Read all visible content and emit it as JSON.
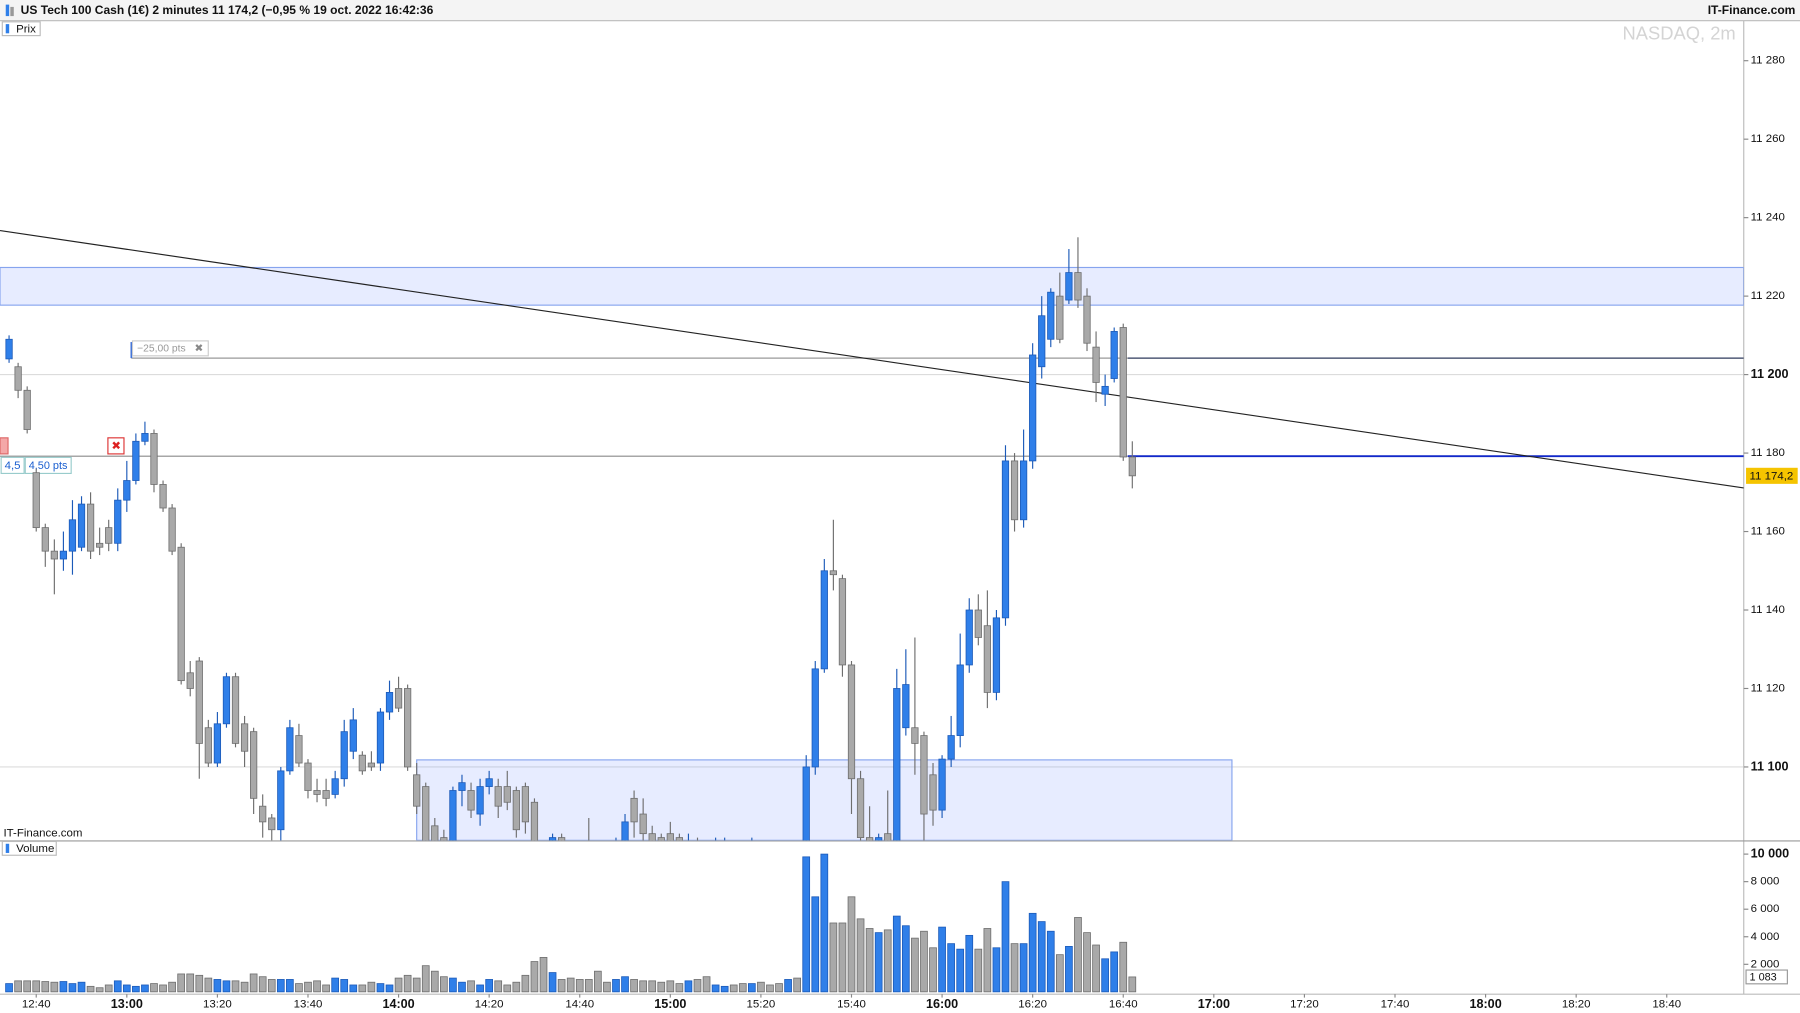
{
  "header": {
    "title": "US Tech 100 Cash (1€) 2 minutes 11 174,2 (−0,95 % 19 oct. 2022 16:42:36",
    "brand": "IT-Finance.com"
  },
  "chart_data": [
    {
      "type": "candlestick",
      "title": "Prix",
      "watermark": "NASDAQ, 2m",
      "source": "IT-Finance.com",
      "up_color": "#2f7fe9",
      "down_color": "#a9a9a9",
      "x": [
        "12:34",
        "12:36",
        "12:38",
        "12:40",
        "12:42",
        "12:44",
        "12:46",
        "12:48",
        "12:50",
        "12:52",
        "12:54",
        "12:56",
        "12:58",
        "13:00",
        "13:02",
        "13:04",
        "13:06",
        "13:08",
        "13:10",
        "13:12",
        "13:14",
        "13:16",
        "13:18",
        "13:20",
        "13:22",
        "13:24",
        "13:26",
        "13:28",
        "13:30",
        "13:32",
        "13:34",
        "13:36",
        "13:38",
        "13:40",
        "13:42",
        "13:44",
        "13:46",
        "13:48",
        "13:50",
        "13:52",
        "13:54",
        "13:56",
        "13:58",
        "14:00",
        "14:02",
        "14:04",
        "14:06",
        "14:08",
        "14:10",
        "14:12",
        "14:14",
        "14:16",
        "14:18",
        "14:20",
        "14:22",
        "14:24",
        "14:26",
        "14:28",
        "14:30",
        "14:32",
        "14:34",
        "14:36",
        "14:38",
        "14:40",
        "14:42",
        "14:44",
        "14:46",
        "14:48",
        "14:50",
        "14:52",
        "14:54",
        "14:56",
        "14:58",
        "15:00",
        "15:02",
        "15:04",
        "15:06",
        "15:08",
        "15:10",
        "15:12",
        "15:14",
        "15:16",
        "15:18",
        "15:20",
        "15:22",
        "15:24",
        "15:26",
        "15:28",
        "15:30",
        "15:32",
        "15:34",
        "15:36",
        "15:38",
        "15:40",
        "15:42",
        "15:44",
        "15:46",
        "15:48",
        "15:50",
        "15:52",
        "15:54",
        "15:56",
        "15:58",
        "16:00",
        "16:02",
        "16:04",
        "16:06",
        "16:08",
        "16:10",
        "16:12",
        "16:14",
        "16:16",
        "16:18",
        "16:20",
        "16:22",
        "16:24",
        "16:26",
        "16:28",
        "16:30",
        "16:32",
        "16:34",
        "16:36",
        "16:38",
        "16:40",
        "16:42"
      ],
      "open": [
        11204,
        11202,
        11196,
        11175,
        11161,
        11155,
        11153,
        11155,
        11156,
        11167,
        11157,
        11161,
        11157,
        11168,
        11173,
        11183,
        11185,
        11172,
        11166,
        11156,
        11124,
        11127,
        11110,
        11101,
        11111,
        11123,
        11111,
        11109,
        11090,
        11087,
        11084,
        11099,
        11108,
        11101,
        11094,
        11094,
        11093,
        11097,
        11104,
        11103,
        11101,
        11101,
        11114,
        11120,
        11120,
        11098,
        11095,
        11085,
        11082,
        11078,
        11094,
        11094,
        11088,
        11095,
        11095,
        11095,
        11094,
        11095,
        11091,
        11078,
        11080,
        11082,
        11079,
        11078,
        11080,
        11077,
        11078,
        11080,
        11081,
        11092,
        11088,
        11083,
        11082,
        11083,
        11082,
        11079,
        11081,
        11080,
        11080,
        11080,
        11080,
        11079,
        11079,
        11080,
        11079,
        11078,
        11076,
        11078,
        11080,
        11100,
        11125,
        11150,
        11148,
        11126,
        11097,
        11082,
        11079,
        11083,
        11080,
        11110,
        11110,
        11108,
        11098,
        11089,
        11102,
        11108,
        11126,
        11140,
        11136,
        11119,
        11138,
        11178,
        11163,
        11178,
        11202,
        11209,
        11220,
        11219,
        11226,
        11220,
        11207,
        11195,
        11199,
        11212,
        11179
      ],
      "high": [
        11210,
        11203,
        11197,
        11176,
        11162,
        11158,
        11160,
        11168,
        11169,
        11170,
        11161,
        11163,
        11171,
        11178,
        11185,
        11188,
        11186,
        11173,
        11167,
        11157,
        11127,
        11128,
        11112,
        11114,
        11124,
        11124,
        11113,
        11110,
        11093,
        11088,
        11100,
        11112,
        11111,
        11102,
        11097,
        11097,
        11099,
        11112,
        11115,
        11104,
        11104,
        11115,
        11122,
        11123,
        11121,
        11101,
        11096,
        11087,
        11084,
        11095,
        11098,
        11096,
        11097,
        11099,
        11097,
        11099,
        11095,
        11096,
        11092,
        11080,
        11083,
        11083,
        11080,
        11079,
        11087,
        11079,
        11080,
        11082,
        11088,
        11094,
        11092,
        11085,
        11083,
        11086,
        11083,
        11083,
        11082,
        11081,
        11082,
        11082,
        11081,
        11080,
        11082,
        11081,
        11080,
        11079,
        11080,
        11079,
        11103,
        11127,
        11153,
        11163,
        11149,
        11127,
        11099,
        11090,
        11083,
        11094,
        11125,
        11130,
        11133,
        11109,
        11101,
        11103,
        11113,
        11134,
        11143,
        11144,
        11145,
        11140,
        11182,
        11180,
        11186,
        11208,
        11220,
        11222,
        11226,
        11232,
        11235,
        11222,
        11211,
        11200,
        11212,
        11213,
        11183
      ],
      "low": [
        11203,
        11194,
        11185,
        11160,
        11151,
        11144,
        11150,
        11149,
        11155,
        11153,
        11154,
        11155,
        11155,
        11165,
        11172,
        11182,
        11170,
        11165,
        11154,
        11121,
        11118,
        11097,
        11100,
        11100,
        11110,
        11105,
        11100,
        11088,
        11082,
        11081,
        11081,
        11098,
        11100,
        11092,
        11091,
        11090,
        11092,
        11095,
        11102,
        11098,
        11099,
        11099,
        11112,
        11114,
        11099,
        11088,
        11075,
        11078,
        11076,
        11076,
        11090,
        11087,
        11085,
        11093,
        11087,
        11089,
        11082,
        11083,
        11072,
        11073,
        11078,
        11078,
        11074,
        11073,
        11074,
        11073,
        11074,
        11079,
        11079,
        11082,
        11080,
        11079,
        11079,
        11079,
        11078,
        11077,
        11077,
        11076,
        11079,
        11079,
        11077,
        11076,
        11078,
        11077,
        11076,
        11075,
        11074,
        11074,
        11078,
        11098,
        11124,
        11145,
        11123,
        11088,
        11078,
        11077,
        11078,
        11078,
        11079,
        11108,
        11098,
        11081,
        11085,
        11087,
        11100,
        11105,
        11124,
        11131,
        11115,
        11117,
        11136,
        11160,
        11161,
        11176,
        11199,
        11207,
        11208,
        11218,
        11217,
        11206,
        11193,
        11192,
        11198,
        11178,
        11171
      ],
      "close": [
        11209,
        11196,
        11186,
        11161,
        11155,
        11153,
        11155,
        11163,
        11167,
        11155,
        11156,
        11157,
        11168,
        11173,
        11183,
        11185,
        11172,
        11166,
        11155,
        11122,
        11120,
        11106,
        11101,
        11111,
        11123,
        11106,
        11104,
        11092,
        11086,
        11084,
        11099,
        11110,
        11101,
        11094,
        11093,
        11092,
        11097,
        11109,
        11112,
        11099,
        11100,
        11114,
        11119,
        11115,
        11100,
        11090,
        11078,
        11080,
        11078,
        11094,
        11096,
        11089,
        11095,
        11097,
        11090,
        11091,
        11084,
        11086,
        11076,
        11075,
        11082,
        11080,
        11076,
        11075,
        11077,
        11075,
        11076,
        11081,
        11086,
        11086,
        11083,
        11081,
        11080,
        11081,
        11080,
        11081,
        11079,
        11078,
        11081,
        11081,
        11079,
        11077,
        11081,
        11078,
        11077,
        11076,
        11078,
        11076,
        11100,
        11125,
        11150,
        11149,
        11126,
        11097,
        11082,
        11079,
        11082,
        11081,
        11120,
        11121,
        11106,
        11088,
        11089,
        11102,
        11108,
        11126,
        11140,
        11133,
        11119,
        11138,
        11178,
        11163,
        11178,
        11205,
        11215,
        11221,
        11209,
        11226,
        11219,
        11208,
        11198,
        11197,
        11211,
        11179,
        11174.2
      ],
      "last_label": "11 174,2",
      "xlim": [
        "12:32",
        "18:57"
      ],
      "xticks": [
        "12:40",
        "13:00",
        "13:20",
        "13:40",
        "14:00",
        "14:20",
        "14:40",
        "15:00",
        "15:20",
        "15:40",
        "16:00",
        "16:20",
        "16:40",
        "17:00",
        "17:20",
        "17:40",
        "18:00",
        "18:20",
        "18:40"
      ],
      "ylim": [
        11081.3,
        11290.2
      ],
      "yticks": [
        {
          "value": 11280,
          "label": "11 280"
        },
        {
          "value": 11260,
          "label": "11 260"
        },
        {
          "value": 11240,
          "label": "11 240"
        },
        {
          "value": 11220,
          "label": "11 220"
        },
        {
          "value": 11200,
          "label": "11 200",
          "major": true
        },
        {
          "value": 11180,
          "label": "11 180"
        },
        {
          "value": 11160,
          "label": "11 160"
        },
        {
          "value": 11140,
          "label": "11 140"
        },
        {
          "value": 11120,
          "label": "11 120"
        },
        {
          "value": 11100,
          "label": "11 100",
          "major": true
        }
      ],
      "trendline": {
        "x": [
          "12:32",
          "18:57"
        ],
        "y": [
          11236.7,
          11171.1
        ]
      },
      "zones": [
        {
          "x": [
            "12:32",
            "18:57"
          ],
          "y": [
            11217.7,
            11227.3
          ]
        },
        {
          "x": [
            "14:04",
            "17:04"
          ],
          "y": [
            11081.3,
            11101.8
          ]
        }
      ],
      "measure": {
        "top": 11204.2,
        "bottom": 11179.2,
        "start": "13:01",
        "split": "16:41",
        "label": "−25,00 pts",
        "order_labels": [
          "4,5",
          "4,50 pts"
        ]
      }
    },
    {
      "type": "bar",
      "title": "Volume",
      "up_color": "#2f7fe9",
      "down_color": "#a9a9a9",
      "x": [
        "12:34",
        "12:36",
        "12:38",
        "12:40",
        "12:42",
        "12:44",
        "12:46",
        "12:48",
        "12:50",
        "12:52",
        "12:54",
        "12:56",
        "12:58",
        "13:00",
        "13:02",
        "13:04",
        "13:06",
        "13:08",
        "13:10",
        "13:12",
        "13:14",
        "13:16",
        "13:18",
        "13:20",
        "13:22",
        "13:24",
        "13:26",
        "13:28",
        "13:30",
        "13:32",
        "13:34",
        "13:36",
        "13:38",
        "13:40",
        "13:42",
        "13:44",
        "13:46",
        "13:48",
        "13:50",
        "13:52",
        "13:54",
        "13:56",
        "13:58",
        "14:00",
        "14:02",
        "14:04",
        "14:06",
        "14:08",
        "14:10",
        "14:12",
        "14:14",
        "14:16",
        "14:18",
        "14:20",
        "14:22",
        "14:24",
        "14:26",
        "14:28",
        "14:30",
        "14:32",
        "14:34",
        "14:36",
        "14:38",
        "14:40",
        "14:42",
        "14:44",
        "14:46",
        "14:48",
        "14:50",
        "14:52",
        "14:54",
        "14:56",
        "14:58",
        "15:00",
        "15:02",
        "15:04",
        "15:06",
        "15:08",
        "15:10",
        "15:12",
        "15:14",
        "15:16",
        "15:18",
        "15:20",
        "15:22",
        "15:24",
        "15:26",
        "15:28",
        "15:30",
        "15:32",
        "15:34",
        "15:36",
        "15:38",
        "15:40",
        "15:42",
        "15:44",
        "15:46",
        "15:48",
        "15:50",
        "15:52",
        "15:54",
        "15:56",
        "15:58",
        "16:00",
        "16:02",
        "16:04",
        "16:06",
        "16:08",
        "16:10",
        "16:12",
        "16:14",
        "16:16",
        "16:18",
        "16:20",
        "16:22",
        "16:24",
        "16:26",
        "16:28",
        "16:30",
        "16:32",
        "16:34",
        "16:36",
        "16:38",
        "16:40",
        "16:42"
      ],
      "values": [
        600,
        800,
        800,
        800,
        750,
        700,
        750,
        600,
        700,
        400,
        300,
        500,
        800,
        500,
        400,
        500,
        600,
        500,
        700,
        1300,
        1300,
        1200,
        1000,
        900,
        800,
        800,
        700,
        1300,
        1100,
        900,
        900,
        900,
        600,
        700,
        800,
        500,
        1000,
        900,
        500,
        500,
        700,
        600,
        500,
        1000,
        1200,
        1000,
        1900,
        1500,
        1100,
        1000,
        700,
        800,
        500,
        900,
        800,
        500,
        700,
        1200,
        2200,
        2500,
        1400,
        900,
        1000,
        900,
        900,
        1500,
        700,
        900,
        1100,
        900,
        800,
        800,
        700,
        800,
        600,
        800,
        900,
        1100,
        500,
        400,
        500,
        600,
        600,
        700,
        500,
        600,
        900,
        1000,
        9800,
        6900,
        10000,
        5000,
        5000,
        6900,
        5300,
        4600,
        4300,
        4500,
        5500,
        4800,
        3900,
        4400,
        3200,
        4700,
        3500,
        3100,
        4100,
        3100,
        4600,
        3200,
        8000,
        3500,
        3500,
        5700,
        5100,
        4400,
        2700,
        3300,
        5400,
        4300,
        3400,
        2400,
        2900,
        3600,
        1083
      ],
      "last_label": "1 083",
      "ylim": [
        0,
        10800
      ],
      "yticks": [
        {
          "value": 10000,
          "label": "10 000",
          "major": true
        },
        {
          "value": 8000,
          "label": "8 000"
        },
        {
          "value": 6000,
          "label": "6 000"
        },
        {
          "value": 4000,
          "label": "4 000"
        },
        {
          "value": 2000,
          "label": "2 000"
        }
      ]
    }
  ]
}
